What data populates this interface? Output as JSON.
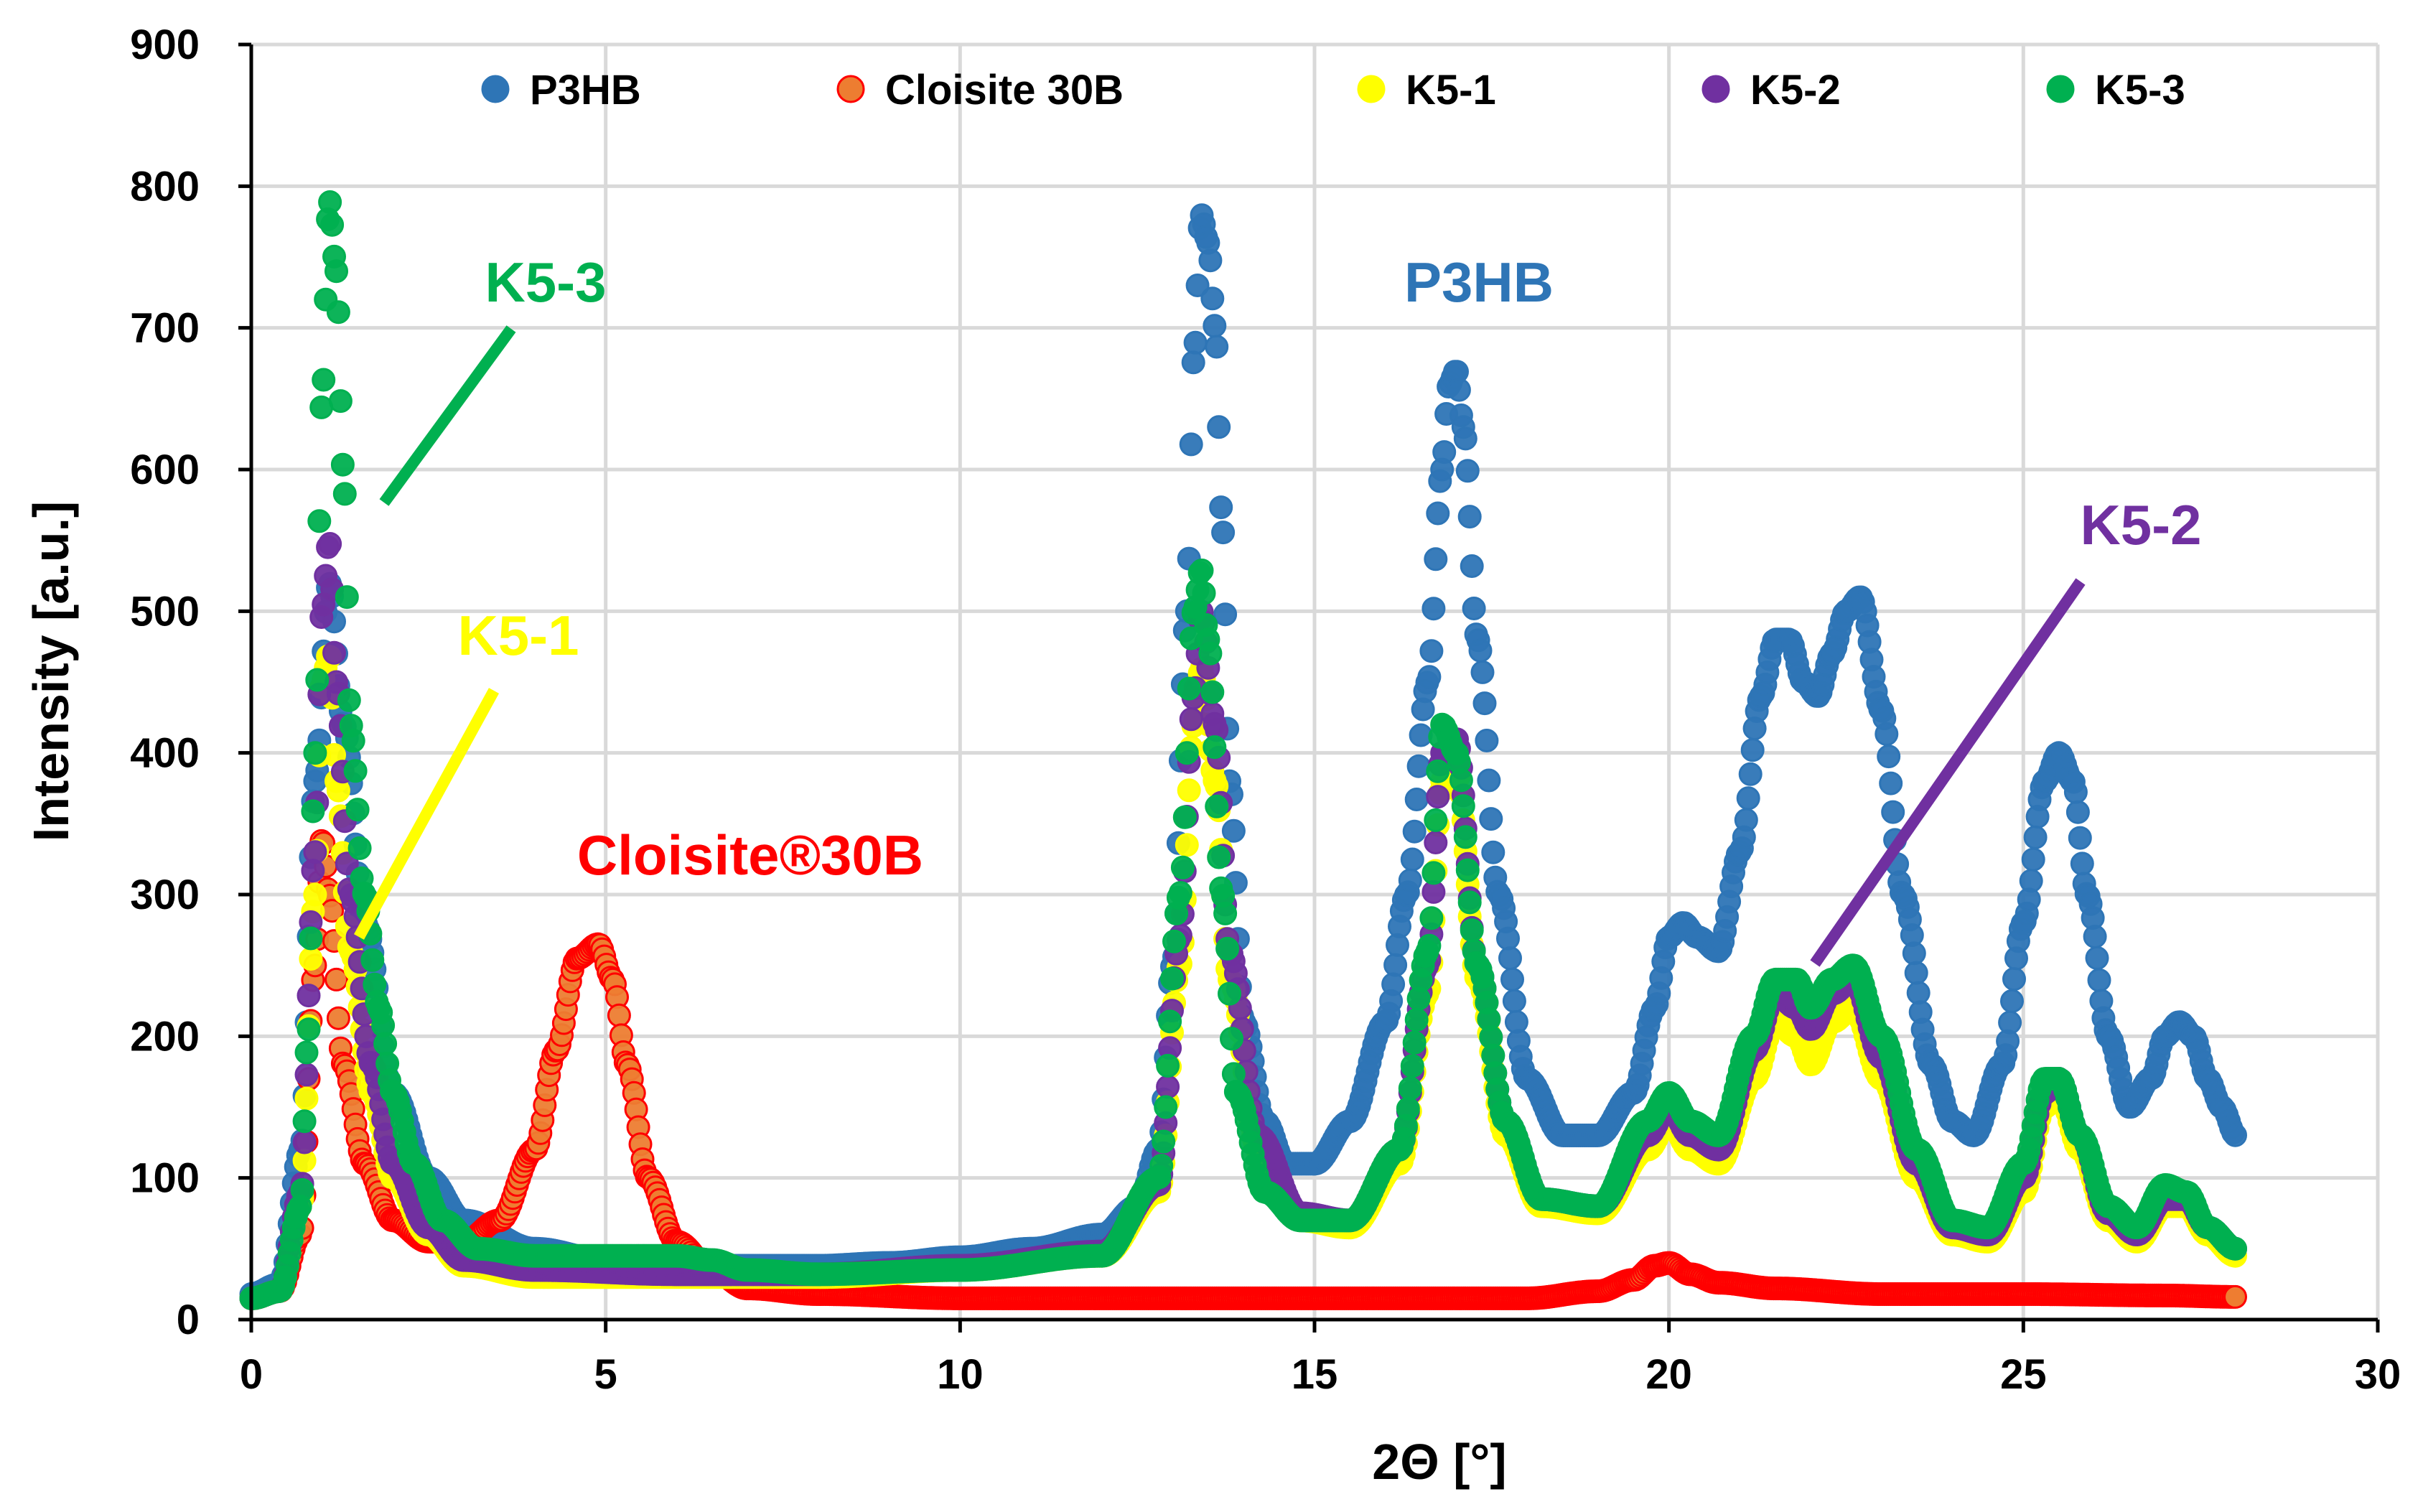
{
  "chart_data": {
    "type": "scatter",
    "title": "",
    "xlabel": "2Θ [°]",
    "ylabel": "Intensity [a.u.]",
    "xlim": [
      0,
      30
    ],
    "ylim": [
      0,
      900
    ],
    "xticks": [
      0,
      5,
      10,
      15,
      20,
      25,
      30
    ],
    "yticks": [
      0,
      100,
      200,
      300,
      400,
      500,
      600,
      700,
      800,
      900
    ],
    "grid": true,
    "legend_position": "top",
    "series": [
      {
        "name": "P3HB",
        "color": "#2E75B6",
        "x": [
          0,
          0.4,
          0.7,
          0.9,
          1.1,
          1.3,
          1.6,
          2.0,
          2.5,
          3,
          4,
          5,
          6,
          7,
          8,
          9,
          10,
          11,
          12,
          12.5,
          12.8,
          13.0,
          13.2,
          13.3,
          13.4,
          13.5,
          13.6,
          13.7,
          13.8,
          14.0,
          14.3,
          14.6,
          15.0,
          15.5,
          16.0,
          16.3,
          16.6,
          16.8,
          16.9,
          17.0,
          17.1,
          17.3,
          17.6,
          18.0,
          18.5,
          19.0,
          19.5,
          19.8,
          20.0,
          20.2,
          20.4,
          20.7,
          21.0,
          21.3,
          21.5,
          21.7,
          21.9,
          22.1,
          22.3,
          22.5,
          22.7,
          23.0,
          23.3,
          23.7,
          24.0,
          24.3,
          24.7,
          25.0,
          25.3,
          25.5,
          25.7,
          25.9,
          26.2,
          26.5,
          26.8,
          27.0,
          27.2,
          27.4,
          27.6,
          27.8,
          28.0
        ],
        "y": [
          18,
          25,
          120,
          380,
          520,
          420,
          280,
          160,
          100,
          70,
          50,
          42,
          38,
          38,
          38,
          40,
          44,
          50,
          60,
          80,
          120,
          250,
          500,
          680,
          780,
          760,
          700,
          560,
          380,
          210,
          140,
          110,
          110,
          140,
          210,
          300,
          450,
          600,
          660,
          670,
          630,
          480,
          300,
          170,
          130,
          130,
          160,
          220,
          270,
          280,
          270,
          260,
          330,
          440,
          480,
          480,
          450,
          440,
          470,
          500,
          510,
          430,
          300,
          180,
          140,
          130,
          180,
          280,
          380,
          400,
          380,
          300,
          200,
          150,
          170,
          200,
          210,
          200,
          170,
          150,
          130
        ]
      },
      {
        "name": "Cloisite 30B",
        "color": "#ED7D31",
        "x": [
          0,
          0.4,
          0.7,
          0.9,
          1.0,
          1.1,
          1.3,
          1.6,
          2.0,
          2.5,
          3.0,
          3.5,
          4.0,
          4.3,
          4.6,
          4.9,
          5.1,
          5.3,
          5.6,
          6.0,
          6.5,
          7.0,
          8,
          10,
          12,
          14,
          16,
          18,
          19.0,
          19.5,
          19.8,
          20.0,
          20.3,
          20.7,
          21.5,
          23,
          25,
          27,
          28
        ],
        "y": [
          15,
          20,
          60,
          250,
          340,
          300,
          180,
          110,
          70,
          55,
          55,
          70,
          120,
          190,
          255,
          265,
          240,
          180,
          100,
          55,
          35,
          22,
          18,
          15,
          15,
          15,
          15,
          15,
          20,
          28,
          38,
          40,
          32,
          26,
          22,
          18,
          18,
          17,
          16
        ]
      },
      {
        "name": "K5-1",
        "color": "#FFFF00",
        "x": [
          0,
          0.4,
          0.7,
          0.9,
          1.0,
          1.1,
          1.2,
          1.4,
          1.7,
          2.0,
          2.5,
          3,
          4,
          6,
          8,
          10,
          12,
          12.8,
          13.1,
          13.3,
          13.4,
          13.6,
          13.8,
          14.2,
          14.8,
          15.5,
          16.2,
          16.6,
          16.8,
          17.0,
          17.3,
          17.7,
          18.2,
          19.0,
          19.7,
          20.0,
          20.3,
          20.7,
          21.2,
          21.5,
          21.8,
          22.0,
          22.3,
          22.6,
          23.0,
          23.5,
          24.0,
          24.5,
          25.0,
          25.3,
          25.5,
          25.8,
          26.2,
          26.6,
          27.0,
          27.3,
          27.6,
          28.0
        ],
        "y": [
          15,
          20,
          80,
          300,
          450,
          470,
          380,
          260,
          160,
          100,
          60,
          38,
          30,
          30,
          30,
          35,
          45,
          90,
          250,
          420,
          460,
          380,
          240,
          120,
          70,
          65,
          110,
          230,
          380,
          390,
          240,
          130,
          80,
          75,
          120,
          140,
          120,
          110,
          170,
          210,
          200,
          180,
          210,
          220,
          170,
          100,
          60,
          55,
          90,
          150,
          160,
          120,
          70,
          55,
          80,
          80,
          60,
          45
        ]
      },
      {
        "name": "K5-2",
        "color": "#7030A0",
        "x": [
          0,
          0.4,
          0.7,
          0.9,
          1.0,
          1.1,
          1.2,
          1.4,
          1.7,
          2.0,
          2.5,
          3,
          4,
          6,
          8,
          10,
          12,
          12.8,
          13.1,
          13.3,
          13.4,
          13.6,
          13.8,
          14.2,
          14.8,
          15.5,
          16.2,
          16.6,
          16.8,
          17.0,
          17.3,
          17.7,
          18.2,
          19.0,
          19.7,
          20.0,
          20.3,
          20.7,
          21.2,
          21.5,
          21.8,
          22.0,
          22.3,
          22.6,
          23.0,
          23.5,
          24.0,
          24.5,
          25.0,
          25.3,
          25.5,
          25.8,
          26.2,
          26.6,
          27.0,
          27.3,
          27.6,
          28.0
        ],
        "y": [
          15,
          20,
          90,
          330,
          500,
          550,
          450,
          300,
          180,
          110,
          65,
          42,
          35,
          32,
          32,
          38,
          48,
          95,
          270,
          440,
          500,
          420,
          260,
          130,
          75,
          70,
          120,
          250,
          400,
          410,
          250,
          140,
          85,
          80,
          130,
          150,
          130,
          120,
          190,
          230,
          220,
          205,
          230,
          240,
          185,
          110,
          65,
          60,
          100,
          160,
          170,
          130,
          75,
          60,
          85,
          85,
          65,
          50
        ]
      },
      {
        "name": "K5-3",
        "color": "#00B050",
        "x": [
          0,
          0.4,
          0.7,
          0.8,
          0.9,
          1.0,
          1.1,
          1.2,
          1.3,
          1.4,
          1.6,
          1.8,
          2.0,
          2.3,
          2.7,
          3.2,
          4,
          5,
          6,
          6.5,
          7,
          8,
          10,
          12,
          12.8,
          13.1,
          13.3,
          13.4,
          13.5,
          13.7,
          13.9,
          14.3,
          14.8,
          15.5,
          16.2,
          16.6,
          16.8,
          17.0,
          17.3,
          17.7,
          18.2,
          19.0,
          19.7,
          20.0,
          20.3,
          20.7,
          21.2,
          21.5,
          21.8,
          22.0,
          22.3,
          22.6,
          23.0,
          23.5,
          24.0,
          24.5,
          25.0,
          25.3,
          25.5,
          25.8,
          26.2,
          26.6,
          27.0,
          27.3,
          27.6,
          28.0
        ],
        "y": [
          15,
          20,
          80,
          200,
          400,
          650,
          790,
          740,
          600,
          420,
          300,
          220,
          160,
          110,
          70,
          50,
          45,
          45,
          45,
          42,
          35,
          32,
          35,
          45,
          100,
          300,
          500,
          530,
          480,
          300,
          160,
          90,
          70,
          70,
          120,
          260,
          420,
          400,
          250,
          140,
          85,
          80,
          140,
          160,
          140,
          130,
          200,
          240,
          240,
          220,
          240,
          250,
          200,
          120,
          70,
          65,
          110,
          170,
          170,
          130,
          80,
          65,
          95,
          90,
          65,
          50
        ]
      }
    ],
    "annotations": [
      {
        "text": "K5-3",
        "color": "#00B050"
      },
      {
        "text": "K5-1",
        "color": "#FFFF00"
      },
      {
        "text": "Cloisite®30B",
        "color": "#FF0000"
      },
      {
        "text": "P3HB",
        "color": "#2E75B6"
      },
      {
        "text": "K5-2",
        "color": "#7030A0"
      }
    ]
  }
}
